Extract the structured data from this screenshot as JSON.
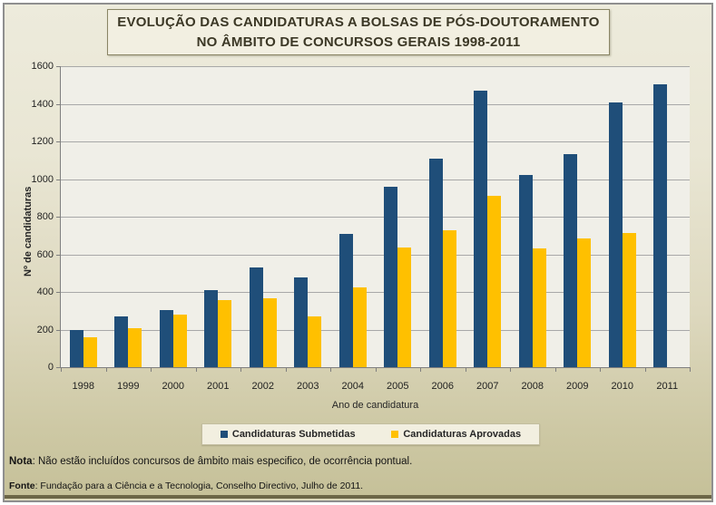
{
  "title": {
    "line1": "EVOLUÇÃO DAS CANDIDATURAS A BOLSAS DE PÓS-DOUTORAMENTO",
    "line2": "NO ÂMBITO DE CONCURSOS GERAIS 1998-2011"
  },
  "chart_data": {
    "type": "bar",
    "categories": [
      "1998",
      "1999",
      "2000",
      "2001",
      "2002",
      "2003",
      "2004",
      "2005",
      "2006",
      "2007",
      "2008",
      "2009",
      "2010",
      "2011"
    ],
    "series": [
      {
        "name": "Candidaturas Submetidas",
        "color": "#1F4E79",
        "values": [
          200,
          270,
          305,
          410,
          530,
          475,
          710,
          960,
          1110,
          1470,
          1020,
          1135,
          1405,
          1505
        ]
      },
      {
        "name": "Candidaturas Aprovadas",
        "color": "#FFC000",
        "values": [
          160,
          205,
          280,
          355,
          365,
          270,
          425,
          635,
          730,
          910,
          630,
          685,
          715,
          null
        ]
      }
    ],
    "xlabel": "Ano de candidatura",
    "ylabel": "Nº de candidaturas",
    "ylim": [
      0,
      1600
    ],
    "ytick_step": 200,
    "grid": true,
    "legend_position": "bottom"
  },
  "footer": {
    "nota_label": "Nota",
    "nota_text": ": Não estão incluídos concursos de âmbito mais especifico, de ocorrência pontual.",
    "fonte_label": "Fonte",
    "fonte_text": ": Fundação para a Ciência e a Tecnologia, Conselho Directivo, Julho de 2011."
  },
  "colors": {
    "submetidas": "#1F4E79",
    "aprovadas": "#FFC000",
    "plot_background": "#F0EFE8",
    "gridline": "#A8A8A8",
    "page_gradient_top": "#EDEBDC",
    "page_gradient_bottom": "#C5C098"
  }
}
